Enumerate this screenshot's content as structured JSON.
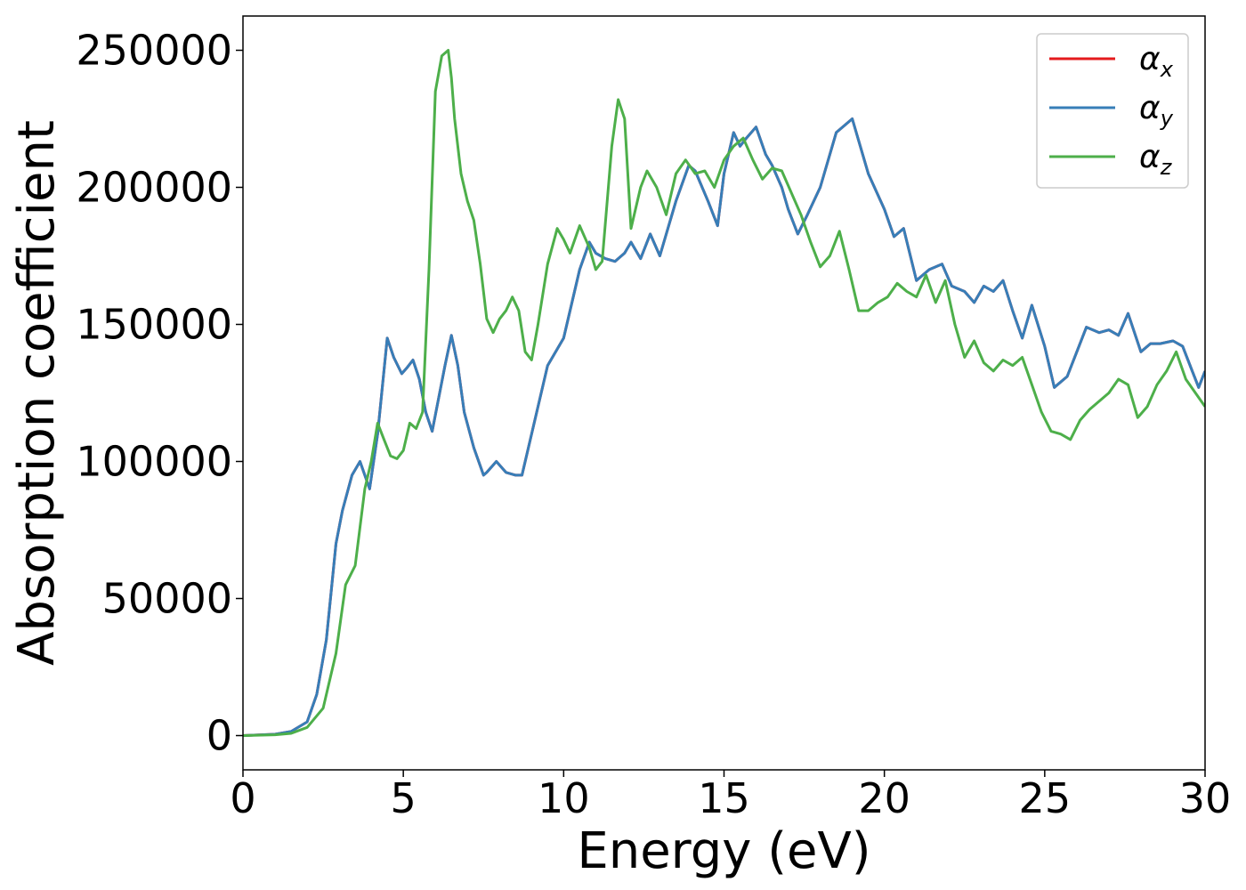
{
  "chart_data": {
    "type": "line",
    "title": "",
    "xlabel": "Energy (eV)",
    "ylabel": "Absorption coefficient",
    "xlim": [
      0,
      30
    ],
    "ylim": [
      -12500,
      262500
    ],
    "xticks": [
      0,
      5,
      10,
      15,
      20,
      25,
      30
    ],
    "xtick_labels": [
      "0",
      "5",
      "10",
      "15",
      "20",
      "25",
      "30"
    ],
    "yticks": [
      0,
      50000,
      100000,
      150000,
      200000,
      250000
    ],
    "ytick_labels": [
      "0",
      "50000",
      "100000",
      "150000",
      "200000",
      "250000"
    ],
    "grid": false,
    "legend_position": "top-right",
    "series": [
      {
        "name": "α_x",
        "symbol": "α",
        "subscript": "x",
        "color": "#e41a1c",
        "x": [
          0,
          1,
          1.5,
          2,
          2.3,
          2.6,
          2.9,
          3.1,
          3.4,
          3.65,
          3.95,
          4.2,
          4.5,
          4.7,
          4.95,
          5.1,
          5.3,
          5.5,
          5.7,
          5.9,
          6.3,
          6.5,
          6.7,
          6.9,
          7.2,
          7.5,
          7.6,
          7.9,
          8.2,
          8.5,
          8.7,
          9,
          9.5,
          10,
          10.5,
          10.8,
          11,
          11.3,
          11.6,
          11.9,
          12.1,
          12.4,
          12.7,
          13,
          13.5,
          13.9,
          14.1,
          14.5,
          14.8,
          15,
          15.3,
          15.5,
          15.7,
          16,
          16.3,
          16.5,
          16.8,
          17,
          17.3,
          17.6,
          18,
          18.5,
          19,
          19.5,
          20,
          20.3,
          20.6,
          21,
          21.4,
          21.8,
          22.1,
          22.5,
          22.8,
          23.1,
          23.4,
          23.7,
          24,
          24.3,
          24.6,
          25,
          25.3,
          25.7,
          26,
          26.3,
          26.7,
          27,
          27.3,
          27.6,
          28,
          28.3,
          28.6,
          29,
          29.3,
          29.6,
          29.8,
          30
        ],
        "y": [
          0,
          500,
          1500,
          5000,
          15000,
          35000,
          70000,
          82000,
          95000,
          100000,
          90000,
          110000,
          145000,
          138000,
          132000,
          134000,
          137000,
          130000,
          118000,
          111000,
          135000,
          146000,
          135000,
          118000,
          105000,
          95000,
          96000,
          100000,
          96000,
          95000,
          95000,
          110000,
          135000,
          145000,
          170000,
          180000,
          176000,
          174000,
          173000,
          176000,
          180000,
          174000,
          183000,
          175000,
          195000,
          208000,
          206000,
          195000,
          186000,
          205000,
          220000,
          215000,
          218000,
          222000,
          212000,
          208000,
          200000,
          192000,
          183000,
          190000,
          200000,
          220000,
          225000,
          205000,
          192000,
          182000,
          185000,
          166000,
          170000,
          172000,
          164000,
          162000,
          158000,
          164000,
          162000,
          166000,
          155000,
          145000,
          157000,
          142000,
          127000,
          131000,
          140000,
          149000,
          147000,
          148000,
          146000,
          154000,
          140000,
          143000,
          143000,
          144000,
          142000,
          133000,
          127000,
          133000
        ]
      },
      {
        "name": "α_y",
        "symbol": "α",
        "subscript": "y",
        "color": "#377eb8",
        "x": [
          0,
          1,
          1.5,
          2,
          2.3,
          2.6,
          2.9,
          3.1,
          3.4,
          3.65,
          3.95,
          4.2,
          4.5,
          4.7,
          4.95,
          5.1,
          5.3,
          5.5,
          5.7,
          5.9,
          6.3,
          6.5,
          6.7,
          6.9,
          7.2,
          7.5,
          7.6,
          7.9,
          8.2,
          8.5,
          8.7,
          9,
          9.5,
          10,
          10.5,
          10.8,
          11,
          11.3,
          11.6,
          11.9,
          12.1,
          12.4,
          12.7,
          13,
          13.5,
          13.9,
          14.1,
          14.5,
          14.8,
          15,
          15.3,
          15.5,
          15.7,
          16,
          16.3,
          16.5,
          16.8,
          17,
          17.3,
          17.6,
          18,
          18.5,
          19,
          19.5,
          20,
          20.3,
          20.6,
          21,
          21.4,
          21.8,
          22.1,
          22.5,
          22.8,
          23.1,
          23.4,
          23.7,
          24,
          24.3,
          24.6,
          25,
          25.3,
          25.7,
          26,
          26.3,
          26.7,
          27,
          27.3,
          27.6,
          28,
          28.3,
          28.6,
          29,
          29.3,
          29.6,
          29.8,
          30
        ],
        "y": [
          0,
          500,
          1500,
          5000,
          15000,
          35000,
          70000,
          82000,
          95000,
          100000,
          90000,
          110000,
          145000,
          138000,
          132000,
          134000,
          137000,
          130000,
          118000,
          111000,
          135000,
          146000,
          135000,
          118000,
          105000,
          95000,
          96000,
          100000,
          96000,
          95000,
          95000,
          110000,
          135000,
          145000,
          170000,
          180000,
          176000,
          174000,
          173000,
          176000,
          180000,
          174000,
          183000,
          175000,
          195000,
          208000,
          206000,
          195000,
          186000,
          205000,
          220000,
          215000,
          218000,
          222000,
          212000,
          208000,
          200000,
          192000,
          183000,
          190000,
          200000,
          220000,
          225000,
          205000,
          192000,
          182000,
          185000,
          166000,
          170000,
          172000,
          164000,
          162000,
          158000,
          164000,
          162000,
          166000,
          155000,
          145000,
          157000,
          142000,
          127000,
          131000,
          140000,
          149000,
          147000,
          148000,
          146000,
          154000,
          140000,
          143000,
          143000,
          144000,
          142000,
          133000,
          127000,
          133000
        ]
      },
      {
        "name": "α_z",
        "symbol": "α",
        "subscript": "z",
        "color": "#4daf4a",
        "x": [
          0,
          1,
          1.5,
          2,
          2.5,
          2.9,
          3.2,
          3.5,
          3.8,
          4,
          4.2,
          4.4,
          4.6,
          4.8,
          5,
          5.2,
          5.4,
          5.6,
          5.8,
          6,
          6.2,
          6.4,
          6.5,
          6.6,
          6.8,
          7,
          7.2,
          7.4,
          7.6,
          7.8,
          8,
          8.2,
          8.4,
          8.6,
          8.8,
          9,
          9.2,
          9.5,
          9.8,
          10,
          10.2,
          10.5,
          10.8,
          11,
          11.2,
          11.5,
          11.7,
          11.9,
          12.1,
          12.4,
          12.6,
          12.9,
          13.2,
          13.5,
          13.8,
          14.1,
          14.4,
          14.7,
          15,
          15.3,
          15.6,
          15.9,
          16.2,
          16.5,
          16.8,
          17.1,
          17.4,
          17.7,
          18,
          18.3,
          18.6,
          18.9,
          19.2,
          19.5,
          19.8,
          20.1,
          20.4,
          20.7,
          21,
          21.3,
          21.6,
          21.9,
          22.2,
          22.5,
          22.8,
          23.1,
          23.4,
          23.7,
          24,
          24.3,
          24.6,
          24.9,
          25.2,
          25.5,
          25.8,
          26.1,
          26.4,
          26.7,
          27,
          27.3,
          27.6,
          27.9,
          28.2,
          28.5,
          28.8,
          29.1,
          29.4,
          29.7,
          30
        ],
        "y": [
          0,
          300,
          800,
          3000,
          10000,
          30000,
          55000,
          62000,
          90000,
          100000,
          114000,
          108000,
          102000,
          101000,
          104000,
          114000,
          112000,
          118000,
          170000,
          235000,
          248000,
          250000,
          240000,
          225000,
          205000,
          195000,
          188000,
          172000,
          152000,
          147000,
          152000,
          155000,
          160000,
          155000,
          140000,
          137000,
          150000,
          172000,
          185000,
          181000,
          176000,
          186000,
          178000,
          170000,
          173000,
          215000,
          232000,
          225000,
          185000,
          200000,
          206000,
          200000,
          190000,
          205000,
          210000,
          205000,
          206000,
          200000,
          210000,
          215000,
          218000,
          210000,
          203000,
          207000,
          206000,
          198000,
          190000,
          180000,
          171000,
          175000,
          184000,
          170000,
          155000,
          155000,
          158000,
          160000,
          165000,
          162000,
          160000,
          168000,
          158000,
          166000,
          150000,
          138000,
          144000,
          136000,
          133000,
          137000,
          135000,
          138000,
          128000,
          118000,
          111000,
          110000,
          108000,
          115000,
          119000,
          122000,
          125000,
          130000,
          128000,
          116000,
          120000,
          128000,
          133000,
          140000,
          130000,
          125000,
          120000
        ]
      }
    ]
  }
}
